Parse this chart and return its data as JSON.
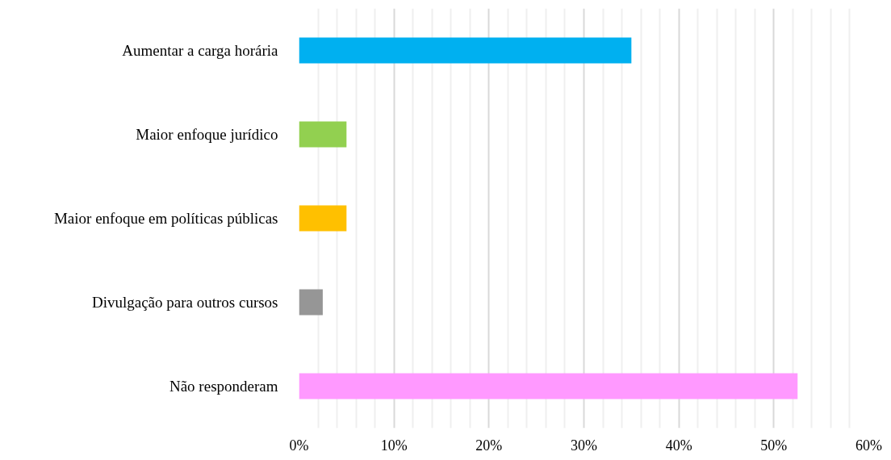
{
  "chart_data": {
    "type": "bar",
    "orientation": "horizontal",
    "categories": [
      "Aumentar a carga horária",
      "Maior enfoque jurídico",
      "Maior enfoque em políticas públicas",
      "Divulgação para outros cursos",
      "Não responderam"
    ],
    "values": [
      35,
      5,
      5,
      2.5,
      52.5
    ],
    "colors": [
      "#00b0f0",
      "#92d050",
      "#ffc000",
      "#969696",
      "#ff99ff"
    ],
    "xlim": [
      0,
      60
    ],
    "xticks": [
      {
        "value": 0,
        "label": "0%"
      },
      {
        "value": 2,
        "label": null
      },
      {
        "value": 4,
        "label": null
      },
      {
        "value": 6,
        "label": null
      },
      {
        "value": 8,
        "label": null
      },
      {
        "value": 10,
        "label": "10%"
      },
      {
        "value": 12,
        "label": null
      },
      {
        "value": 14,
        "label": null
      },
      {
        "value": 16,
        "label": null
      },
      {
        "value": 18,
        "label": null
      },
      {
        "value": 20,
        "label": "20%"
      },
      {
        "value": 22,
        "label": null
      },
      {
        "value": 24,
        "label": null
      },
      {
        "value": 26,
        "label": null
      },
      {
        "value": 28,
        "label": null
      },
      {
        "value": 30,
        "label": "30%"
      },
      {
        "value": 32,
        "label": null
      },
      {
        "value": 34,
        "label": null
      },
      {
        "value": 36,
        "label": null
      },
      {
        "value": 38,
        "label": null
      },
      {
        "value": 40,
        "label": "40%"
      },
      {
        "value": 42,
        "label": null
      },
      {
        "value": 44,
        "label": null
      },
      {
        "value": 46,
        "label": null
      },
      {
        "value": 48,
        "label": null
      },
      {
        "value": 50,
        "label": "50%"
      },
      {
        "value": 52,
        "label": null
      },
      {
        "value": 54,
        "label": null
      },
      {
        "value": 56,
        "label": null
      },
      {
        "value": 58,
        "label": null
      },
      {
        "value": 60,
        "label": "60%"
      }
    ],
    "grid": "x"
  }
}
